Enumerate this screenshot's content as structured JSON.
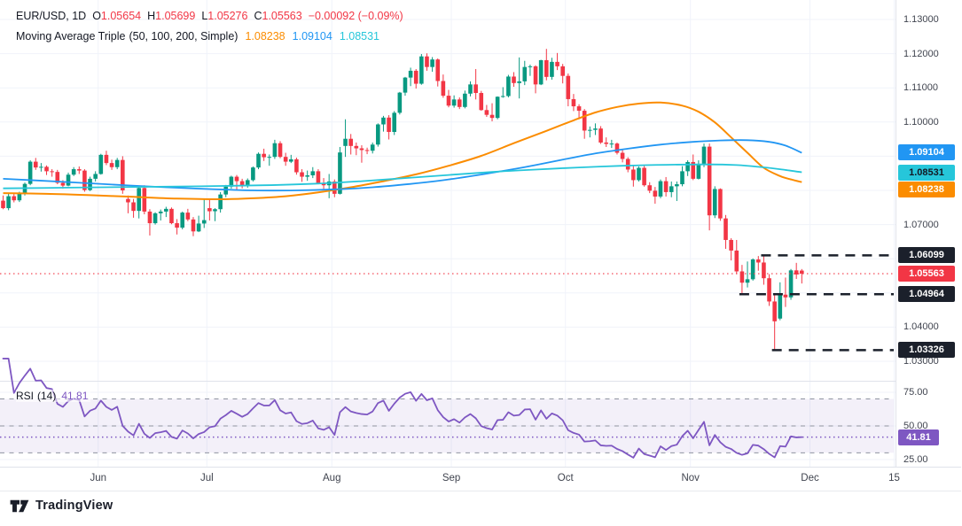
{
  "legend": {
    "symbol": "EUR/USD, 1D",
    "o_label": "O",
    "o": "1.05654",
    "h_label": "H",
    "h": "1.05699",
    "l_label": "L",
    "l": "1.05276",
    "c_label": "C",
    "c": "1.05563",
    "change": "−0.00092 (−0.09%)",
    "ma_name": "Moving Average Triple",
    "ma_params": "(50, 100, 200, Simple)",
    "ma50": "1.08238",
    "ma100": "1.09104",
    "ma200": "1.08531"
  },
  "rsi_legend": {
    "name": "RSI",
    "params": "(14)",
    "value": "41.81"
  },
  "watermark": "TradingView",
  "colors": {
    "up": "#089981",
    "down": "#F23645",
    "ma50": "#FB8C00",
    "ma100": "#2196F3",
    "ma200": "#26C6DA",
    "rsi": "#7E57C2",
    "level": "#1B202B",
    "grid": "#F0F3FA",
    "border": "#E0E3EB",
    "axis_text": "#40444F",
    "text": "#131722"
  },
  "chart_data": {
    "type": "candlestick",
    "symbol": "EUR/USD",
    "interval": "1D",
    "title": "EUR/USD, 1D",
    "ylim": [
      1.0243,
      1.1357
    ],
    "price_ticks": [
      1.03,
      1.04,
      1.05,
      1.06,
      1.07,
      1.08,
      1.09,
      1.1,
      1.11,
      1.12,
      1.13
    ],
    "time_ticks": [
      {
        "label": "Jun",
        "i": 17.5
      },
      {
        "label": "Jul",
        "i": 37.5
      },
      {
        "label": "Aug",
        "i": 60.5
      },
      {
        "label": "Sep",
        "i": 82.5
      },
      {
        "label": "Oct",
        "i": 103.5
      },
      {
        "label": "Nov",
        "i": 126.5
      },
      {
        "label": "Dec",
        "i": 148.5
      },
      {
        "label": "15",
        "i": 164
      }
    ],
    "last_price": 1.05563,
    "levels": [
      {
        "price": 1.06099,
        "from": 140
      },
      {
        "price": 1.04964,
        "from": 136
      },
      {
        "price": 1.03326,
        "from": 142
      }
    ],
    "moving_averages": [
      {
        "name": "SMA 50",
        "period": 50,
        "color": "#FB8C00",
        "text_color": "#ffffff",
        "value": 1.08238,
        "width": 2,
        "points": [
          [
            0,
            1.0792
          ],
          [
            8,
            1.079
          ],
          [
            16,
            1.0786
          ],
          [
            24,
            1.0781
          ],
          [
            32,
            1.0776
          ],
          [
            40,
            1.0774
          ],
          [
            46,
            1.0777
          ],
          [
            52,
            1.0783
          ],
          [
            58,
            1.0794
          ],
          [
            64,
            1.0809
          ],
          [
            70,
            1.0827
          ],
          [
            76,
            1.0847
          ],
          [
            82,
            1.0872
          ],
          [
            88,
            1.0901
          ],
          [
            94,
            1.0938
          ],
          [
            100,
            1.0974
          ],
          [
            105,
            1.1005
          ],
          [
            109,
            1.1028
          ],
          [
            113,
            1.1044
          ],
          [
            117,
            1.1054
          ],
          [
            121,
            1.1057
          ],
          [
            125,
            1.1048
          ],
          [
            128,
            1.103
          ],
          [
            131,
            1.0999
          ],
          [
            134,
            1.0955
          ],
          [
            137,
            1.091
          ],
          [
            140,
            1.0866
          ],
          [
            143,
            1.0842
          ],
          [
            145,
            1.0832
          ],
          [
            147,
            1.0824
          ]
        ]
      },
      {
        "name": "SMA 100",
        "period": 100,
        "color": "#2196F3",
        "text_color": "#ffffff",
        "value": 1.09104,
        "width": 1.8,
        "points": [
          [
            0,
            1.0834
          ],
          [
            10,
            1.0826
          ],
          [
            20,
            1.0817
          ],
          [
            30,
            1.0809
          ],
          [
            38,
            1.0804
          ],
          [
            46,
            1.08
          ],
          [
            54,
            1.08
          ],
          [
            61,
            1.0803
          ],
          [
            68,
            1.0809
          ],
          [
            75,
            1.0819
          ],
          [
            82,
            1.0832
          ],
          [
            89,
            1.0849
          ],
          [
            96,
            1.0868
          ],
          [
            103,
            1.089
          ],
          [
            109,
            1.0908
          ],
          [
            115,
            1.0922
          ],
          [
            121,
            1.0934
          ],
          [
            127,
            1.0942
          ],
          [
            132,
            1.0946
          ],
          [
            137,
            1.0947
          ],
          [
            141,
            1.0942
          ],
          [
            144,
            1.0931
          ],
          [
            147,
            1.091
          ]
        ]
      },
      {
        "name": "SMA 200",
        "period": 200,
        "color": "#26C6DA",
        "text_color": "#131722",
        "value": 1.08531,
        "width": 1.8,
        "points": [
          [
            0,
            1.0806
          ],
          [
            12,
            1.0808
          ],
          [
            24,
            1.081
          ],
          [
            36,
            1.0812
          ],
          [
            48,
            1.0815
          ],
          [
            58,
            1.082
          ],
          [
            66,
            1.0827
          ],
          [
            74,
            1.0836
          ],
          [
            82,
            1.0845
          ],
          [
            90,
            1.0854
          ],
          [
            98,
            1.0861
          ],
          [
            106,
            1.0867
          ],
          [
            114,
            1.0872
          ],
          [
            122,
            1.0875
          ],
          [
            130,
            1.0876
          ],
          [
            135,
            1.0874
          ],
          [
            139,
            1.0869
          ],
          [
            143,
            1.0862
          ],
          [
            147,
            1.0853
          ]
        ]
      }
    ],
    "rsi": {
      "period": 14,
      "last": 41.81,
      "color": "#7E57C2",
      "band": [
        30,
        70
      ],
      "mid": 50,
      "ylim": [
        19.7,
        82.2
      ],
      "ticks": [
        75,
        50,
        25
      ]
    },
    "candles": [
      [
        1.077,
        1.0785,
        1.0745,
        1.0748
      ],
      [
        1.0748,
        1.079,
        1.0742,
        1.0783
      ],
      [
        1.0783,
        1.0791,
        1.0765,
        1.0771
      ],
      [
        1.0771,
        1.0796,
        1.0766,
        1.079
      ],
      [
        1.079,
        1.0823,
        1.0785,
        1.0819
      ],
      [
        1.0819,
        1.0888,
        1.0815,
        1.0884
      ],
      [
        1.0884,
        1.0895,
        1.086,
        1.0867
      ],
      [
        1.0867,
        1.088,
        1.0855,
        1.0869
      ],
      [
        1.0869,
        1.0873,
        1.0845,
        1.0856
      ],
      [
        1.0856,
        1.0862,
        1.084,
        1.0854
      ],
      [
        1.0854,
        1.086,
        1.0818,
        1.0822
      ],
      [
        1.0822,
        1.083,
        1.0805,
        1.0814
      ],
      [
        1.0814,
        1.0852,
        1.0812,
        1.0846
      ],
      [
        1.0846,
        1.0868,
        1.0842,
        1.0862
      ],
      [
        1.0862,
        1.087,
        1.0848,
        1.0858
      ],
      [
        1.0858,
        1.0862,
        1.0796,
        1.0801
      ],
      [
        1.0801,
        1.084,
        1.0798,
        1.0834
      ],
      [
        1.0834,
        1.0856,
        1.0826,
        1.0848
      ],
      [
        1.0848,
        1.0907,
        1.0846,
        1.0904
      ],
      [
        1.0904,
        1.0916,
        1.0874,
        1.088
      ],
      [
        1.088,
        1.089,
        1.086,
        1.0868
      ],
      [
        1.0868,
        1.0895,
        1.0862,
        1.0889
      ],
      [
        1.0889,
        1.09,
        1.079,
        1.08
      ],
      [
        1.0775,
        1.0785,
        1.0733,
        1.0765
      ],
      [
        1.0765,
        1.0775,
        1.072,
        1.074
      ],
      [
        1.074,
        1.081,
        1.0718,
        1.0807
      ],
      [
        1.0807,
        1.0815,
        1.073,
        1.0738
      ],
      [
        1.0738,
        1.0745,
        1.0668,
        1.0704
      ],
      [
        1.0704,
        1.0736,
        1.07,
        1.0733
      ],
      [
        1.0733,
        1.0744,
        1.0712,
        1.0738
      ],
      [
        1.0738,
        1.0752,
        1.0722,
        1.0746
      ],
      [
        1.0746,
        1.075,
        1.0701,
        1.0704
      ],
      [
        1.0704,
        1.0716,
        1.0671,
        1.0691
      ],
      [
        1.0691,
        1.0738,
        1.0686,
        1.0735
      ],
      [
        1.0735,
        1.0746,
        1.071,
        1.0715
      ],
      [
        1.0715,
        1.0722,
        1.0666,
        1.068
      ],
      [
        1.068,
        1.0726,
        1.0678,
        1.0703
      ],
      [
        1.0703,
        1.0776,
        1.069,
        1.0713
      ],
      [
        1.0748,
        1.0776,
        1.0712,
        1.0739
      ],
      [
        1.0739,
        1.0748,
        1.071,
        1.0745
      ],
      [
        1.0745,
        1.0795,
        1.0735,
        1.0788
      ],
      [
        1.0788,
        1.0816,
        1.078,
        1.0811
      ],
      [
        1.0811,
        1.0843,
        1.0805,
        1.084
      ],
      [
        1.084,
        1.0845,
        1.08,
        1.0827
      ],
      [
        1.0827,
        1.0834,
        1.0806,
        1.0813
      ],
      [
        1.0813,
        1.0835,
        1.0808,
        1.083
      ],
      [
        1.083,
        1.087,
        1.0826,
        1.0867
      ],
      [
        1.0867,
        1.0911,
        1.0862,
        1.0907
      ],
      [
        1.0907,
        1.0922,
        1.0886,
        1.0897
      ],
      [
        1.0897,
        1.0905,
        1.0872,
        1.0898
      ],
      [
        1.0898,
        1.0948,
        1.0892,
        1.0938
      ],
      [
        1.0938,
        1.0944,
        1.0894,
        1.0898
      ],
      [
        1.0898,
        1.091,
        1.0872,
        1.0884
      ],
      [
        1.0884,
        1.0904,
        1.088,
        1.0891
      ],
      [
        1.0891,
        1.0896,
        1.0846,
        1.0853
      ],
      [
        1.0853,
        1.0862,
        1.0825,
        1.084
      ],
      [
        1.084,
        1.0858,
        1.0828,
        1.0844
      ],
      [
        1.0844,
        1.0868,
        1.0836,
        1.0856
      ],
      [
        1.0856,
        1.0862,
        1.0818,
        1.0822
      ],
      [
        1.0822,
        1.0836,
        1.0804,
        1.0815
      ],
      [
        1.0815,
        1.0848,
        1.0777,
        1.0826
      ],
      [
        1.0826,
        1.0832,
        1.078,
        1.079
      ],
      [
        1.079,
        1.0927,
        1.0788,
        1.0911
      ],
      [
        1.093,
        1.1008,
        1.0898,
        1.0951
      ],
      [
        1.0951,
        1.0965,
        1.0905,
        1.093
      ],
      [
        1.093,
        1.094,
        1.0903,
        1.0923
      ],
      [
        1.0923,
        1.0932,
        1.0881,
        1.0918
      ],
      [
        1.0918,
        1.0925,
        1.0906,
        1.0916
      ],
      [
        1.0916,
        1.094,
        1.0908,
        1.0934
      ],
      [
        1.0934,
        1.0996,
        1.0928,
        1.0993
      ],
      [
        1.0993,
        1.1018,
        1.0972,
        1.1013
      ],
      [
        1.1013,
        1.102,
        1.0949,
        1.0971
      ],
      [
        1.0971,
        1.1032,
        1.0962,
        1.1027
      ],
      [
        1.1027,
        1.1088,
        1.1022,
        1.1086
      ],
      [
        1.1086,
        1.1132,
        1.1077,
        1.113
      ],
      [
        1.113,
        1.1159,
        1.1105,
        1.115
      ],
      [
        1.115,
        1.1155,
        1.1098,
        1.1112
      ],
      [
        1.1112,
        1.1199,
        1.1109,
        1.1192
      ],
      [
        1.1192,
        1.1201,
        1.115,
        1.1161
      ],
      [
        1.1161,
        1.119,
        1.1147,
        1.1183
      ],
      [
        1.1183,
        1.1186,
        1.1104,
        1.112
      ],
      [
        1.112,
        1.1139,
        1.1071,
        1.1077
      ],
      [
        1.1077,
        1.1094,
        1.1043,
        1.1048
      ],
      [
        1.1048,
        1.1078,
        1.1042,
        1.1066
      ],
      [
        1.1066,
        1.1072,
        1.1038,
        1.1044
      ],
      [
        1.1044,
        1.1092,
        1.104,
        1.1083
      ],
      [
        1.1083,
        1.1119,
        1.1075,
        1.111
      ],
      [
        1.111,
        1.1155,
        1.1066,
        1.1085
      ],
      [
        1.1085,
        1.1091,
        1.1033,
        1.1035
      ],
      [
        1.1035,
        1.105,
        1.1015,
        1.1021
      ],
      [
        1.1021,
        1.1055,
        1.1002,
        1.1012
      ],
      [
        1.1012,
        1.1075,
        1.1008,
        1.1074
      ],
      [
        1.1074,
        1.1102,
        1.1071,
        1.1076
      ],
      [
        1.1076,
        1.1138,
        1.1072,
        1.1133
      ],
      [
        1.1133,
        1.1146,
        1.1103,
        1.1114
      ],
      [
        1.1114,
        1.1189,
        1.1069,
        1.1119
      ],
      [
        1.1119,
        1.1179,
        1.1108,
        1.1161
      ],
      [
        1.1161,
        1.1168,
        1.1135,
        1.1163
      ],
      [
        1.1163,
        1.1166,
        1.1084,
        1.111
      ],
      [
        1.111,
        1.1182,
        1.1108,
        1.1181
      ],
      [
        1.1181,
        1.1214,
        1.1122,
        1.1132
      ],
      [
        1.1132,
        1.1188,
        1.1124,
        1.1176
      ],
      [
        1.1176,
        1.1202,
        1.1152,
        1.1163
      ],
      [
        1.1163,
        1.117,
        1.1113,
        1.1135
      ],
      [
        1.1135,
        1.1142,
        1.1046,
        1.1067
      ],
      [
        1.1067,
        1.1082,
        1.1032,
        1.1046
      ],
      [
        1.1046,
        1.1052,
        1.1008,
        1.1033
      ],
      [
        1.1033,
        1.1038,
        1.0951,
        1.0975
      ],
      [
        1.0975,
        1.0987,
        1.0955,
        1.0977
      ],
      [
        1.0977,
        1.0996,
        1.0962,
        1.0981
      ],
      [
        1.0981,
        1.0988,
        1.0936,
        1.094
      ],
      [
        1.094,
        1.0955,
        1.0927,
        1.0936
      ],
      [
        1.0936,
        1.0948,
        1.0924,
        1.0937
      ],
      [
        1.0937,
        1.094,
        1.0905,
        1.091
      ],
      [
        1.091,
        1.092,
        1.0882,
        1.0892
      ],
      [
        1.0892,
        1.0897,
        1.0853,
        1.0861
      ],
      [
        1.0861,
        1.0874,
        1.0811,
        1.083
      ],
      [
        1.083,
        1.087,
        1.0826,
        1.0866
      ],
      [
        1.0866,
        1.0872,
        1.0811,
        1.0815
      ],
      [
        1.0815,
        1.0824,
        1.0792,
        1.0799
      ],
      [
        1.0799,
        1.081,
        1.0761,
        1.0782
      ],
      [
        1.0782,
        1.0832,
        1.0777,
        1.0827
      ],
      [
        1.0827,
        1.0839,
        1.0782,
        1.0795
      ],
      [
        1.0795,
        1.0826,
        1.078,
        1.0812
      ],
      [
        1.0812,
        1.0826,
        1.0769,
        1.0818
      ],
      [
        1.0818,
        1.0871,
        1.0812,
        1.0856
      ],
      [
        1.0856,
        1.0888,
        1.0842,
        1.0883
      ],
      [
        1.0883,
        1.0905,
        1.083,
        1.0834
      ],
      [
        1.0834,
        1.0888,
        1.0832,
        1.0878
      ],
      [
        1.0878,
        1.0937,
        1.0868,
        1.0928
      ],
      [
        1.0928,
        1.0937,
        1.0683,
        1.0727
      ],
      [
        1.0727,
        1.0812,
        1.0719,
        1.0804
      ],
      [
        1.0804,
        1.0806,
        1.0711,
        1.0718
      ],
      [
        1.0718,
        1.0728,
        1.0629,
        1.0655
      ],
      [
        1.0655,
        1.066,
        1.0595,
        1.0624
      ],
      [
        1.0624,
        1.0655,
        1.0555,
        1.0563
      ],
      [
        1.0563,
        1.0582,
        1.0496,
        1.053
      ],
      [
        1.053,
        1.0592,
        1.0516,
        1.054
      ],
      [
        1.054,
        1.0601,
        1.0536,
        1.0598
      ],
      [
        1.0598,
        1.0608,
        1.0565,
        1.0589
      ],
      [
        1.0589,
        1.0609,
        1.0524,
        1.0543
      ],
      [
        1.0543,
        1.0555,
        1.0462,
        1.0475
      ],
      [
        1.0475,
        1.0497,
        1.0333,
        1.0417
      ],
      [
        1.0425,
        1.0531,
        1.042,
        1.0495
      ],
      [
        1.0495,
        1.0545,
        1.0459,
        1.0487
      ],
      [
        1.0487,
        1.057,
        1.048,
        1.0566
      ],
      [
        1.0566,
        1.0588,
        1.0541,
        1.0554
      ],
      [
        1.05654,
        1.05699,
        1.05276,
        1.05563
      ]
    ]
  }
}
